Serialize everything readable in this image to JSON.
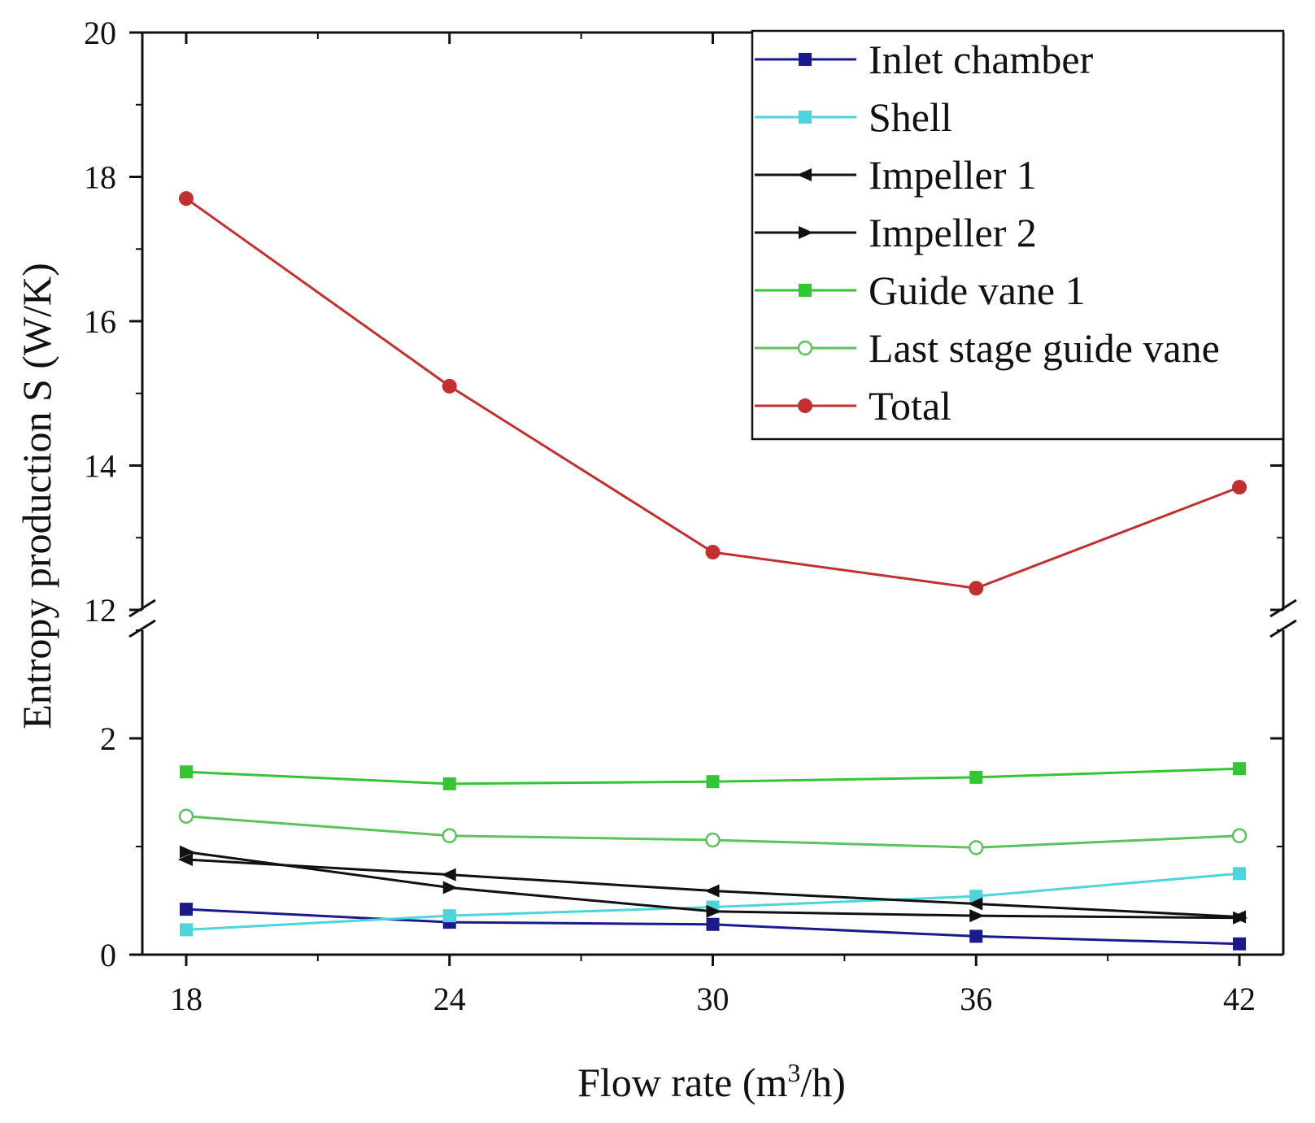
{
  "chart_data": {
    "type": "line",
    "title": "",
    "xlabel": "Flow rate (m",
    "xlabel_sup": "3",
    "xlabel_tail": "/h)",
    "ylabel": "Entropy production S (W/K)",
    "x": [
      18,
      24,
      30,
      36,
      42
    ],
    "x_ticks": [
      "18",
      "24",
      "30",
      "36",
      "42"
    ],
    "xlim": [
      17,
      43
    ],
    "y_break": {
      "lower_range": [
        0,
        3
      ],
      "upper_range": [
        12,
        20
      ],
      "lower_ticks": [
        "0",
        "2"
      ],
      "upper_ticks": [
        "12",
        "14",
        "16",
        "18",
        "20"
      ]
    },
    "legend_position": "top-right",
    "series": [
      {
        "name": "Inlet chamber",
        "color": "#1a1a8c",
        "marker": "square",
        "values": [
          0.42,
          0.3,
          0.28,
          0.17,
          0.1
        ]
      },
      {
        "name": "Shell",
        "color": "#4fd4dc",
        "marker": "square",
        "values": [
          0.23,
          0.36,
          0.44,
          0.54,
          0.75
        ]
      },
      {
        "name": "Impeller 1",
        "color": "#111111",
        "marker": "triangle-left",
        "values": [
          0.88,
          0.74,
          0.59,
          0.47,
          0.35
        ]
      },
      {
        "name": "Impeller 2",
        "color": "#111111",
        "marker": "triangle-right",
        "values": [
          0.95,
          0.62,
          0.4,
          0.36,
          0.34
        ]
      },
      {
        "name": "Guide vane 1",
        "color": "#35c435",
        "marker": "square",
        "values": [
          1.69,
          1.58,
          1.6,
          1.64,
          1.72
        ]
      },
      {
        "name": "Last stage guide vane",
        "color": "#5cc25c",
        "marker": "open-circle",
        "values": [
          1.28,
          1.1,
          1.06,
          0.99,
          1.1
        ]
      },
      {
        "name": "Total",
        "color": "#c03030",
        "marker": "circle",
        "values": [
          17.7,
          15.1,
          12.8,
          12.3,
          13.7
        ]
      }
    ]
  }
}
